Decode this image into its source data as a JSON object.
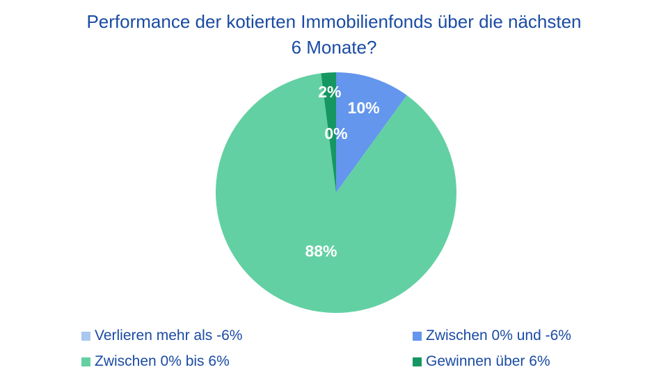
{
  "header": {
    "line1": "Performance der kotierten Immobilienfonds über die nächsten",
    "line2": "6 Monate?"
  },
  "colors": {
    "background": "#FFFFFF",
    "title_text": "#1A4BA3",
    "legend_text": "#1A4BA3",
    "data_label_text": "#FFFFFF"
  },
  "chart_data": {
    "type": "pie",
    "title": "Performance der kotierten Immobilienfonds über die nächsten 6 Monate?",
    "start_angle_deg": 0,
    "direction": "clockwise",
    "legend_position": "bottom",
    "legend_columns": 2,
    "data_label_color": "#FFFFFF",
    "slices": [
      {
        "label": "Verlieren mehr als -6%",
        "value": 0,
        "pct_label": "0%",
        "color": "#A9C8F0",
        "label_r": 0.49
      },
      {
        "label": "Zwischen 0% und -6%",
        "value": 10,
        "pct_label": "10%",
        "color": "#6396EC",
        "label_r": 0.74
      },
      {
        "label": "Zwischen 0% bis 6%",
        "value": 88,
        "pct_label": "88%",
        "color": "#63D0A3",
        "label_r": 0.5
      },
      {
        "label": "Gewinnen über 6%",
        "value": 2,
        "pct_label": "2%",
        "color": "#169762",
        "label_r": 0.84
      }
    ]
  }
}
